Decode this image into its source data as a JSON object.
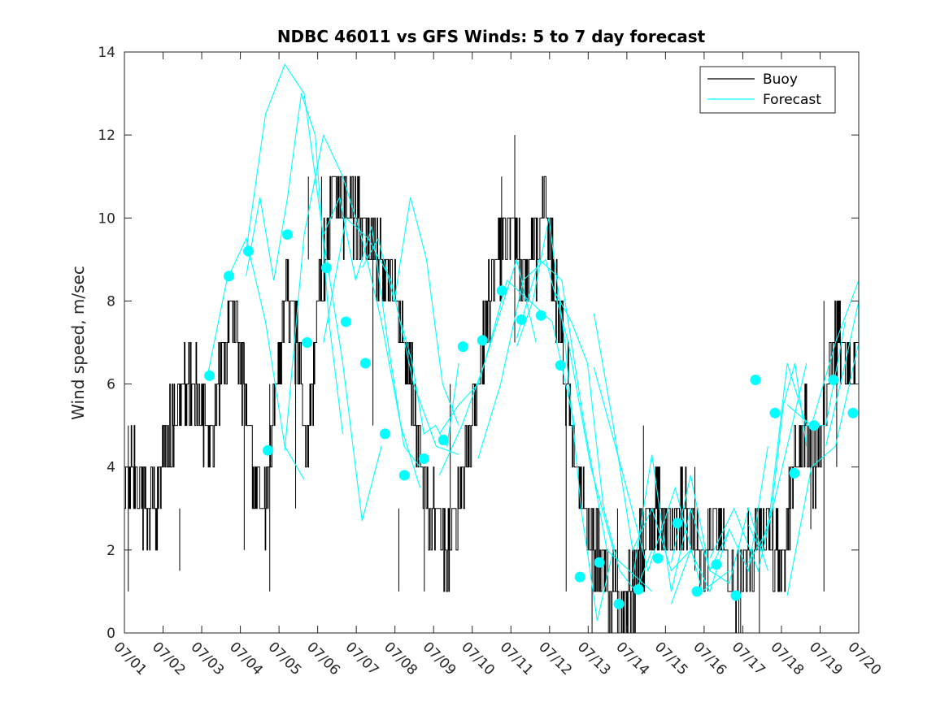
{
  "chart_data": {
    "type": "line",
    "title": "NDBC 46011 vs GFS Winds: 5 to 7 day forecast",
    "xlabel": "",
    "ylabel": "Wind speed, m/sec",
    "xlim": [
      "07/01",
      "07/20"
    ],
    "ylim": [
      0,
      14
    ],
    "x_ticks": [
      "07/01",
      "07/02",
      "07/03",
      "07/04",
      "07/05",
      "07/06",
      "07/07",
      "07/08",
      "07/09",
      "07/10",
      "07/11",
      "07/12",
      "07/13",
      "07/14",
      "07/15",
      "07/16",
      "07/17",
      "07/18",
      "07/19",
      "07/20"
    ],
    "y_ticks": [
      0,
      2,
      4,
      6,
      8,
      10,
      12,
      14
    ],
    "grid": false,
    "legend": {
      "placement": "top-right",
      "entries": [
        "Buoy",
        "Forecast"
      ]
    },
    "colors": {
      "buoy": "#000000",
      "forecast": "#00FFFF",
      "axis": "#262626"
    },
    "buoy_profile": [
      [
        "07/01",
        3.5
      ],
      [
        "07/01",
        4
      ],
      [
        "07/01",
        3
      ],
      [
        "07/02",
        3
      ],
      [
        "07/02",
        4.5
      ],
      [
        "07/02",
        5.5
      ],
      [
        "07/02",
        6
      ],
      [
        "07/03",
        5.5
      ],
      [
        "07/03",
        4.5
      ],
      [
        "07/03",
        6.5
      ],
      [
        "07/03",
        8
      ],
      [
        "07/03",
        6
      ],
      [
        "07/04",
        3.5
      ],
      [
        "07/04",
        3
      ],
      [
        "07/04",
        6
      ],
      [
        "07/04",
        8.5
      ],
      [
        "07/04",
        7
      ],
      [
        "07/04",
        4.5
      ],
      [
        "07/05",
        8
      ],
      [
        "07/05",
        10
      ],
      [
        "07/05",
        10.5
      ],
      [
        "07/05",
        10
      ],
      [
        "07/06",
        10
      ],
      [
        "07/06",
        9
      ],
      [
        "07/06",
        9
      ],
      [
        "07/07",
        8.5
      ],
      [
        "07/07",
        7
      ],
      [
        "07/07",
        5
      ],
      [
        "07/08",
        3
      ],
      [
        "07/08",
        2.5
      ],
      [
        "07/08",
        2
      ],
      [
        "07/09",
        3
      ],
      [
        "07/09",
        5
      ],
      [
        "07/09",
        6.5
      ],
      [
        "07/09",
        8.5
      ],
      [
        "07/10",
        9
      ],
      [
        "07/10",
        10
      ],
      [
        "07/10",
        8.5
      ],
      [
        "07/11",
        9
      ],
      [
        "07/11",
        10.5
      ],
      [
        "07/11",
        8
      ],
      [
        "07/11",
        6
      ],
      [
        "07/12",
        4
      ],
      [
        "07/12",
        2.5
      ],
      [
        "07/12",
        2
      ],
      [
        "07/13",
        1
      ],
      [
        "07/13",
        0.5
      ],
      [
        "07/13",
        1
      ],
      [
        "07/14",
        2
      ],
      [
        "07/14",
        3
      ],
      [
        "07/14",
        2.5
      ],
      [
        "07/15",
        2.5
      ],
      [
        "07/15",
        3
      ],
      [
        "07/15",
        2
      ],
      [
        "07/16",
        2
      ],
      [
        "07/16",
        2.5
      ],
      [
        "07/16",
        1.5
      ],
      [
        "07/17",
        1
      ],
      [
        "07/17",
        2
      ],
      [
        "07/17",
        2.5
      ],
      [
        "07/17",
        2
      ],
      [
        "07/18",
        1.5
      ],
      [
        "07/18",
        4
      ],
      [
        "07/18",
        5
      ],
      [
        "07/18",
        4
      ],
      [
        "07/19",
        5.5
      ],
      [
        "07/19",
        7
      ],
      [
        "07/19",
        6.5
      ],
      [
        "07/20",
        7
      ]
    ],
    "buoy_spikes": [
      [
        "07/01",
        5,
        1
      ],
      [
        "07/02",
        3,
        1.5
      ],
      [
        "07/04",
        6,
        1
      ],
      [
        "07/04",
        7,
        2
      ],
      [
        "07/05",
        8,
        3
      ],
      [
        "07/05",
        11,
        9
      ],
      [
        "07/06",
        11,
        8
      ],
      [
        "07/07",
        9,
        5
      ],
      [
        "07/08",
        4,
        1
      ],
      [
        "07/08",
        3,
        1
      ],
      [
        "07/09",
        6,
        3
      ],
      [
        "07/10",
        11,
        8
      ],
      [
        "07/11",
        12,
        7
      ],
      [
        "07/12",
        6,
        1
      ],
      [
        "07/13",
        3,
        0
      ],
      [
        "07/13",
        2,
        0
      ],
      [
        "07/14",
        5,
        1
      ],
      [
        "07/15",
        4,
        1.5
      ],
      [
        "07/16",
        3,
        1
      ],
      [
        "07/17",
        3,
        0
      ],
      [
        "07/18",
        5,
        2.5
      ],
      [
        "07/19",
        8,
        1
      ],
      [
        "07/19",
        8,
        4
      ]
    ],
    "forecast_runs": [
      [
        [
          "07/03",
          6.2
        ],
        [
          "07/03",
          8.5
        ],
        [
          "07/04",
          9.5
        ],
        [
          "07/04",
          7.5
        ],
        [
          "07/04",
          4.5
        ],
        [
          "07/05",
          3.7
        ]
      ],
      [
        [
          "07/04",
          8.6
        ],
        [
          "07/04",
          10.5
        ],
        [
          "07/04",
          8.5
        ],
        [
          "07/05",
          10.5
        ],
        [
          "07/05",
          13
        ],
        [
          "07/05",
          12
        ],
        [
          "07/06",
          7.5
        ],
        [
          "07/06",
          4.8
        ]
      ],
      [
        [
          "07/04",
          9.2
        ],
        [
          "07/05",
          12.5
        ],
        [
          "07/05",
          13.7
        ],
        [
          "07/06",
          13
        ],
        [
          "07/06",
          9.5
        ],
        [
          "07/06",
          6.5
        ],
        [
          "07/07",
          2.7
        ],
        [
          "07/07",
          4.5
        ]
      ],
      [
        [
          "07/05",
          4.4
        ],
        [
          "07/05",
          9.6
        ],
        [
          "07/06",
          12
        ],
        [
          "07/06",
          11
        ],
        [
          "07/07",
          9.5
        ],
        [
          "07/07",
          7.5
        ],
        [
          "07/07",
          5
        ],
        [
          "07/08",
          3.5
        ]
      ],
      [
        [
          "07/06",
          9.6
        ],
        [
          "07/06",
          10.5
        ],
        [
          "07/07",
          8.5
        ],
        [
          "07/07",
          9.8
        ],
        [
          "07/07",
          7
        ],
        [
          "07/08",
          4.5
        ],
        [
          "07/08",
          4
        ]
      ],
      [
        [
          "07/06",
          7.0
        ],
        [
          "07/07",
          10
        ],
        [
          "07/07",
          9.5
        ],
        [
          "07/08",
          8.5
        ],
        [
          "07/08",
          6
        ],
        [
          "07/08",
          4.5
        ],
        [
          "07/09",
          4.3
        ]
      ],
      [
        [
          "07/07",
          8.8
        ],
        [
          "07/07",
          9.5
        ],
        [
          "07/07",
          8
        ],
        [
          "07/08",
          10.5
        ],
        [
          "07/08",
          9
        ],
        [
          "07/08",
          6
        ],
        [
          "07/09",
          5
        ]
      ],
      [
        [
          "07/08",
          7.5
        ],
        [
          "07/08",
          6.5
        ],
        [
          "07/08",
          4.8
        ],
        [
          "07/09",
          5
        ],
        [
          "07/09",
          4.5
        ],
        [
          "07/09",
          6.5
        ]
      ],
      [
        [
          "07/09",
          4.8
        ],
        [
          "07/09",
          5.5
        ],
        [
          "07/10",
          6
        ],
        [
          "07/10",
          7.5
        ],
        [
          "07/10",
          9
        ],
        [
          "07/11",
          7
        ]
      ],
      [
        [
          "07/09",
          3.8
        ],
        [
          "07/10",
          5
        ],
        [
          "07/10",
          6.5
        ],
        [
          "07/10",
          8.5
        ],
        [
          "07/11",
          8
        ],
        [
          "07/11",
          7.5
        ],
        [
          "07/12",
          5
        ]
      ],
      [
        [
          "07/10",
          4.2
        ],
        [
          "07/10",
          6
        ],
        [
          "07/11",
          8.5
        ],
        [
          "07/11",
          9
        ],
        [
          "07/12",
          7
        ],
        [
          "07/12",
          4
        ],
        [
          "07/13",
          2
        ]
      ],
      [
        [
          "07/11",
          6.9
        ],
        [
          "07/11",
          8
        ],
        [
          "07/12",
          10
        ],
        [
          "07/12",
          7
        ],
        [
          "07/12",
          3
        ],
        [
          "07/13",
          0.3
        ],
        [
          "07/13",
          2
        ]
      ],
      [
        [
          "07/11",
          7.1
        ],
        [
          "07/12",
          9
        ],
        [
          "07/12",
          8.5
        ],
        [
          "07/12",
          5
        ],
        [
          "07/13",
          2
        ],
        [
          "07/13",
          1.5
        ],
        [
          "07/14",
          1
        ]
      ],
      [
        [
          "07/12",
          8.2
        ],
        [
          "07/12",
          7.5
        ],
        [
          "07/13",
          6.5
        ],
        [
          "07/13",
          3
        ],
        [
          "07/14",
          1.5
        ],
        [
          "07/14",
          1
        ],
        [
          "07/14",
          2
        ]
      ],
      [
        [
          "07/13",
          7.7
        ],
        [
          "07/13",
          5
        ],
        [
          "07/13",
          2
        ],
        [
          "07/14",
          3
        ],
        [
          "07/14",
          1.5
        ],
        [
          "07/15",
          2
        ]
      ],
      [
        [
          "07/13",
          6.4
        ],
        [
          "07/14",
          4
        ],
        [
          "07/14",
          1.5
        ],
        [
          "07/15",
          3.5
        ],
        [
          "07/15",
          1
        ],
        [
          "07/16",
          1.5
        ]
      ],
      [
        [
          "07/14",
          1.3
        ],
        [
          "07/14",
          4.3
        ],
        [
          "07/15",
          1
        ],
        [
          "07/15",
          3
        ],
        [
          "07/16",
          1.5
        ],
        [
          "07/16",
          2.5
        ]
      ],
      [
        [
          "07/15",
          1.7
        ],
        [
          "07/15",
          3.8
        ],
        [
          "07/15",
          1.5
        ],
        [
          "07/16",
          1.2
        ],
        [
          "07/16",
          3
        ],
        [
          "07/17",
          1.5
        ]
      ],
      [
        [
          "07/15",
          0.7
        ],
        [
          "07/16",
          2
        ],
        [
          "07/16",
          1
        ],
        [
          "07/16",
          2.5
        ],
        [
          "07/17",
          1.5
        ],
        [
          "07/17",
          4.5
        ]
      ],
      [
        [
          "07/16",
          1.8
        ],
        [
          "07/16",
          3
        ],
        [
          "07/17",
          1.5
        ],
        [
          "07/17",
          4
        ],
        [
          "07/18",
          6.5
        ]
      ],
      [
        [
          "07/17",
          2.6
        ],
        [
          "07/17",
          2
        ],
        [
          "07/17",
          3
        ],
        [
          "07/18",
          5.5
        ],
        [
          "07/18",
          6.5
        ],
        [
          "07/18",
          4.5
        ]
      ],
      [
        [
          "07/17",
          1.7
        ],
        [
          "07/17",
          2.5
        ],
        [
          "07/18",
          6.5
        ],
        [
          "07/18",
          5
        ],
        [
          "07/19",
          5
        ],
        [
          "07/19",
          7.5
        ]
      ],
      [
        [
          "07/18",
          0.9
        ],
        [
          "07/18",
          4
        ],
        [
          "07/19",
          4.5
        ],
        [
          "07/19",
          7
        ],
        [
          "07/20",
          8
        ]
      ],
      [
        [
          "07/18",
          5.5
        ],
        [
          "07/19",
          5
        ],
        [
          "07/19",
          7
        ],
        [
          "07/20",
          8.5
        ],
        [
          "07/20",
          7
        ]
      ],
      [
        [
          "07/19",
          4.5
        ],
        [
          "07/19",
          6.5
        ],
        [
          "07/20",
          8
        ],
        [
          "07/20",
          6
        ]
      ]
    ],
    "forecast_points": [
      [
        "07/03",
        6.2
      ],
      [
        "07/04",
        8.6
      ],
      [
        "07/04",
        9.2
      ],
      [
        "07/05",
        4.4
      ],
      [
        "07/05",
        9.6
      ],
      [
        "07/06",
        7.0
      ],
      [
        "07/06",
        8.8
      ],
      [
        "07/07",
        7.5
      ],
      [
        "07/07",
        6.5
      ],
      [
        "07/08",
        4.8
      ],
      [
        "07/08",
        3.8
      ],
      [
        "07/09",
        4.2
      ],
      [
        "07/09",
        4.65
      ],
      [
        "07/10",
        6.9
      ],
      [
        "07/10",
        7.05
      ],
      [
        "07/11",
        8.25
      ],
      [
        "07/11",
        7.55
      ],
      [
        "07/12",
        7.65
      ],
      [
        "07/12",
        6.45
      ],
      [
        "07/13",
        1.35
      ],
      [
        "07/13",
        1.7
      ],
      [
        "07/14",
        0.7
      ],
      [
        "07/14",
        1.05
      ],
      [
        "07/15",
        1.8
      ],
      [
        "07/15",
        2.65
      ],
      [
        "07/16",
        1.0
      ],
      [
        "07/16",
        1.65
      ],
      [
        "07/17",
        0.9
      ],
      [
        "07/17",
        6.1
      ],
      [
        "07/18",
        5.3
      ],
      [
        "07/18",
        3.85
      ],
      [
        "07/19",
        5.0
      ],
      [
        "07/19",
        6.1
      ],
      [
        "07/20",
        5.3
      ]
    ]
  }
}
